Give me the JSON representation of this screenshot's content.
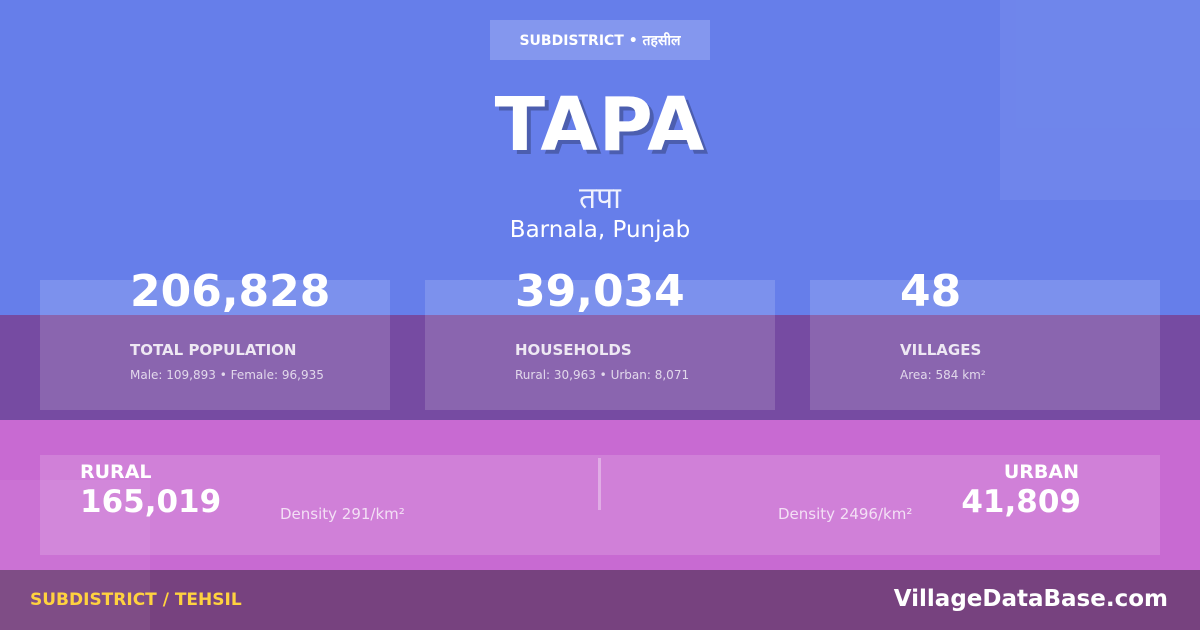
{
  "badge": "SUBDISTRICT • तहसील",
  "title": "TAPA",
  "title_hindi": "तपा",
  "location": "Barnala, Punjab",
  "stats": [
    {
      "value": "206,828",
      "label": "TOTAL POPULATION",
      "sub": "Male: 109,893 • Female: 96,935"
    },
    {
      "value": "39,034",
      "label": "HOUSEHOLDS",
      "sub": "Rural: 30,963 • Urban: 8,071"
    },
    {
      "value": "48",
      "label": "VILLAGES",
      "sub": "Area: 584 km²"
    }
  ],
  "rural": {
    "label": "RURAL",
    "value": "165,019",
    "density": "Density 291/km²"
  },
  "urban": {
    "label": "URBAN",
    "value": "41,809",
    "density": "Density 2496/km²"
  },
  "footer": {
    "left": "SUBDISTRICT / TEHSIL",
    "right": "VillageDataBase.com"
  },
  "colors": {
    "top": "#667eea",
    "band": "#764ba2",
    "pink": "#c86ad2",
    "footer": "#77427f",
    "accent": "#ffd23f"
  }
}
